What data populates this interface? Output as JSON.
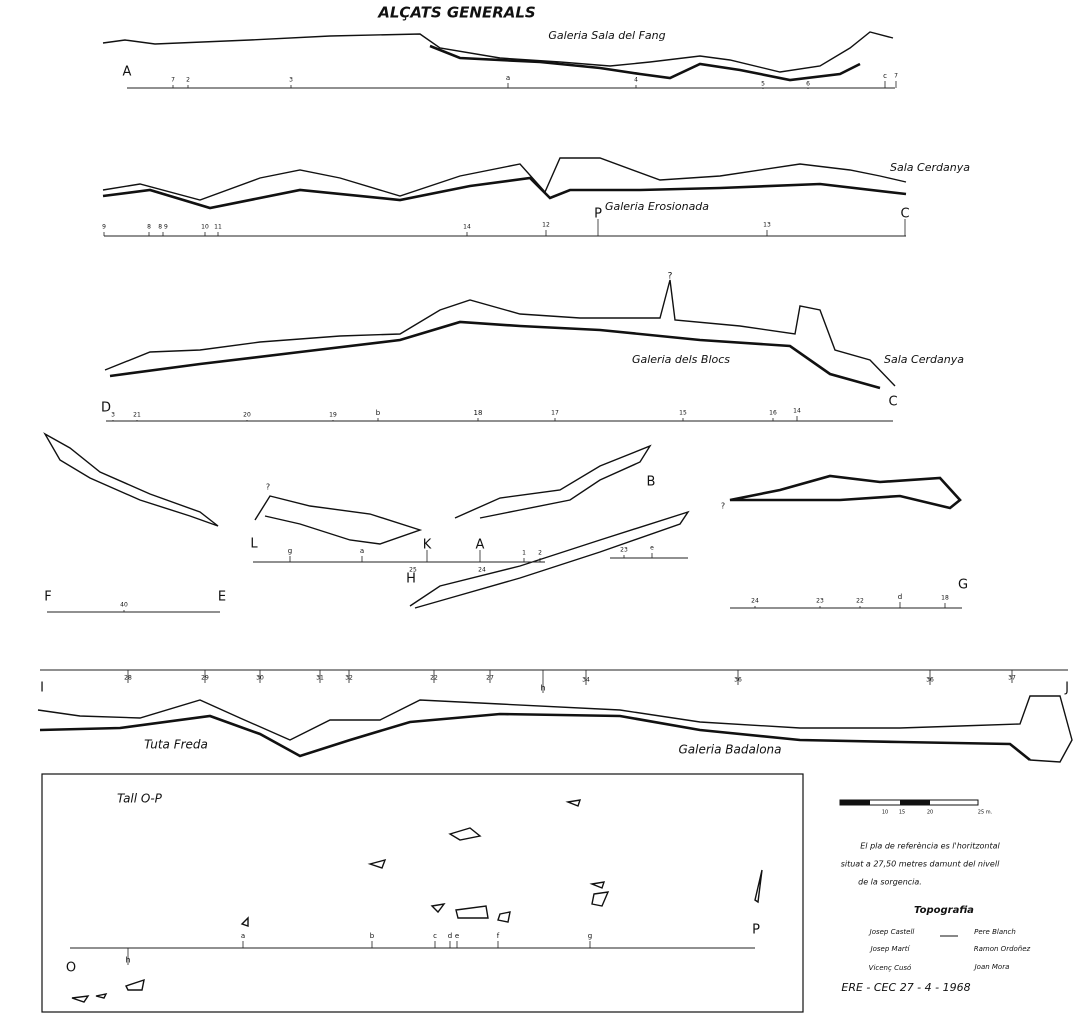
{
  "title": "ALÇATS GENERALS",
  "profiles": [
    {
      "labels": [
        "Galeria Sala del Fang",
        "A",
        "7",
        "2",
        "3",
        "a",
        "4",
        "5",
        "6",
        "c",
        "7"
      ]
    },
    {
      "labels": [
        "Sala Cerdanya",
        "Galeria Erosionada",
        "9",
        "8",
        "8 9",
        "10",
        "11",
        "14",
        "12",
        "P",
        "13",
        "C"
      ]
    },
    {
      "labels": [
        "?",
        "Galeria dels Blocs",
        "Sala Cerdanya",
        "D",
        "3",
        "21",
        "20",
        "19",
        "b",
        "18",
        "17",
        "15",
        "16",
        "14",
        "C"
      ]
    },
    {
      "labels": [
        "?",
        "L",
        "g",
        "a",
        "K",
        "25",
        "H",
        "A",
        "24",
        "1",
        "2",
        "B",
        "23",
        "e",
        "?",
        "F",
        "40",
        "E",
        "G",
        "24",
        "23",
        "22",
        "d",
        "18"
      ]
    },
    {
      "labels": [
        "I",
        "28",
        "29",
        "30",
        "31",
        "32",
        "22",
        "27",
        "h",
        "34",
        "36",
        "36",
        "37",
        "J",
        "Tuta Freda",
        "Galeria Badalona"
      ]
    }
  ],
  "section": {
    "labels": [
      "Tall O-P",
      "O",
      "h",
      "a",
      "b",
      "c",
      "d",
      "e",
      "f",
      "g",
      "P"
    ]
  },
  "legend": {
    "scale": [
      "10",
      "15",
      "20",
      "25 m."
    ],
    "note": [
      "El pla de referència es l'horitzontal",
      "situat a 27,50 metres damunt del nivell",
      "de la sorgencia."
    ],
    "heading": "Topografia",
    "surveyors": [
      "Josep Castell",
      "Pere Blanch",
      "Josep Martí",
      "Ramon Ordoñez",
      "Vicenç Cusó",
      "Joan Mora"
    ],
    "footer": "ERE - CEC   27 - 4 - 1968"
  }
}
